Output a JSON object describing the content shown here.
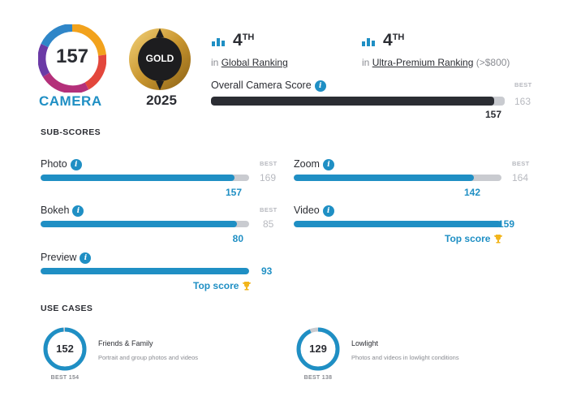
{
  "badges": {
    "camera_score": "157",
    "camera_label": "CAMERA",
    "gold_label": "GOLD",
    "gold_year": "2025"
  },
  "rankings": [
    {
      "number": "4",
      "suffix": "TH",
      "prefix": "in",
      "label": "Global Ranking",
      "extra": ""
    },
    {
      "number": "4",
      "suffix": "TH",
      "prefix": "in",
      "label": "Ultra-Premium Ranking",
      "extra": "(>$800)"
    }
  ],
  "overall": {
    "title": "Overall Camera Score",
    "best_label": "BEST",
    "best_value": "163",
    "value": "157",
    "fraction": 0.963
  },
  "subscores": {
    "title": "SUB-SCORES",
    "items": [
      {
        "label": "Photo",
        "value": "157",
        "best_label": "BEST",
        "best_value": "169",
        "fraction": 0.929,
        "top": ""
      },
      {
        "label": "Zoom",
        "value": "142",
        "best_label": "BEST",
        "best_value": "164",
        "fraction": 0.866,
        "top": ""
      },
      {
        "label": "Bokeh",
        "value": "80",
        "best_label": "BEST",
        "best_value": "85",
        "fraction": 0.94,
        "top": ""
      },
      {
        "label": "Video",
        "value": "159",
        "best_label": "",
        "best_value": "",
        "fraction": 1.0,
        "top": "Top score"
      },
      {
        "label": "Preview",
        "value": "93",
        "best_label": "",
        "best_value": "",
        "fraction": 1.0,
        "top": "Top score"
      }
    ]
  },
  "usecases": {
    "title": "USE CASES",
    "items": [
      {
        "value": "152",
        "fraction": 0.987,
        "title": "Friends & Family",
        "desc": "Portrait and group photos and videos",
        "best": "BEST 154"
      },
      {
        "value": "129",
        "fraction": 0.935,
        "title": "Lowlight",
        "desc": "Photos and videos in lowlight conditions",
        "best": "BEST 138"
      }
    ]
  },
  "colors": {
    "accent": "#1f8fc4",
    "dark": "#2b2d33",
    "track": "#c9cbd0",
    "trophy": "#f2b51c"
  },
  "icons": {
    "info": "info-icon",
    "ranking": "bar-chart-icon",
    "trophy": "trophy-icon"
  }
}
